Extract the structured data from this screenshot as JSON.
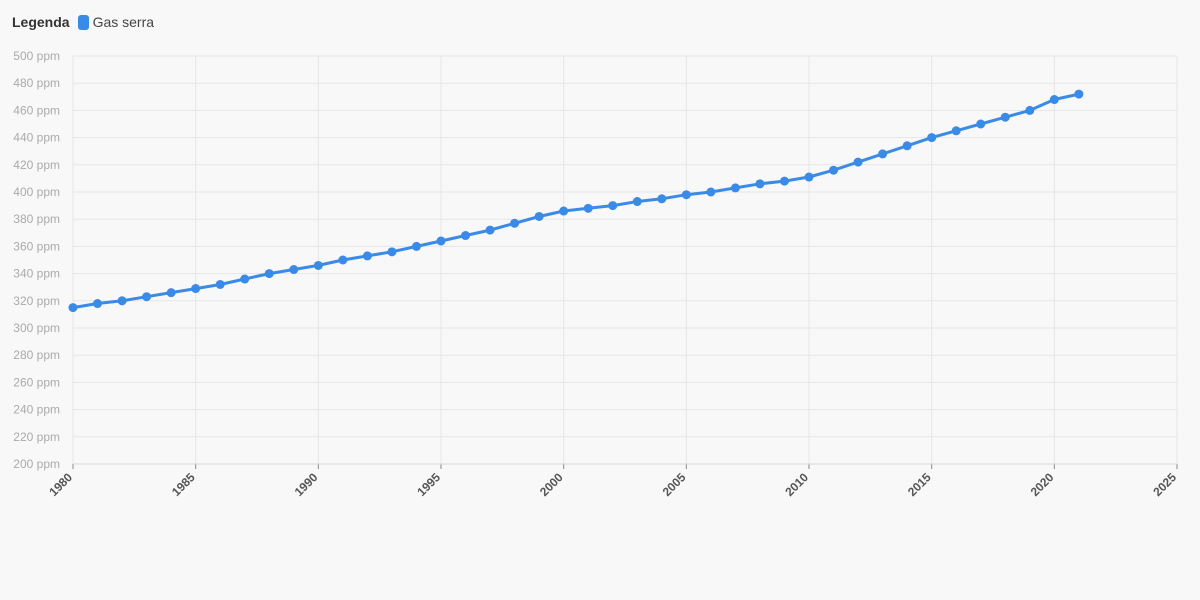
{
  "legend": {
    "title": "Legenda",
    "items": [
      {
        "label": "Gas serra",
        "color": "#3a8ae8"
      }
    ]
  },
  "chart_data": {
    "type": "line",
    "title": "",
    "xlabel": "",
    "ylabel": "",
    "xlim": [
      1980,
      2025
    ],
    "ylim": [
      200,
      500
    ],
    "x_ticks": [
      "1980",
      "1985",
      "1990",
      "1995",
      "2000",
      "2005",
      "2010",
      "2015",
      "2020",
      "2025"
    ],
    "y_ticks": [
      "200 ppm",
      "220 ppm",
      "240 ppm",
      "260 ppm",
      "280 ppm",
      "300 ppm",
      "320 ppm",
      "340 ppm",
      "360 ppm",
      "380 ppm",
      "400 ppm",
      "420 ppm",
      "440 ppm",
      "460 ppm",
      "480 ppm",
      "500 ppm"
    ],
    "grid": true,
    "legend_position": "top-left",
    "series": [
      {
        "name": "Gas serra",
        "color": "#3a8ae8",
        "x": [
          1980,
          1981,
          1982,
          1983,
          1984,
          1985,
          1986,
          1987,
          1988,
          1989,
          1990,
          1991,
          1992,
          1993,
          1994,
          1995,
          1996,
          1997,
          1998,
          1999,
          2000,
          2001,
          2002,
          2003,
          2004,
          2005,
          2006,
          2007,
          2008,
          2009,
          2010,
          2011,
          2012,
          2013,
          2014,
          2015,
          2016,
          2017,
          2018,
          2019,
          2020,
          2021
        ],
        "values": [
          315,
          318,
          320,
          323,
          326,
          329,
          332,
          336,
          340,
          343,
          346,
          350,
          353,
          356,
          360,
          364,
          368,
          372,
          377,
          382,
          386,
          388,
          390,
          393,
          395,
          398,
          400,
          403,
          406,
          408,
          411,
          416,
          422,
          428,
          434,
          440,
          445,
          450,
          455,
          460,
          468,
          472
        ]
      }
    ]
  }
}
